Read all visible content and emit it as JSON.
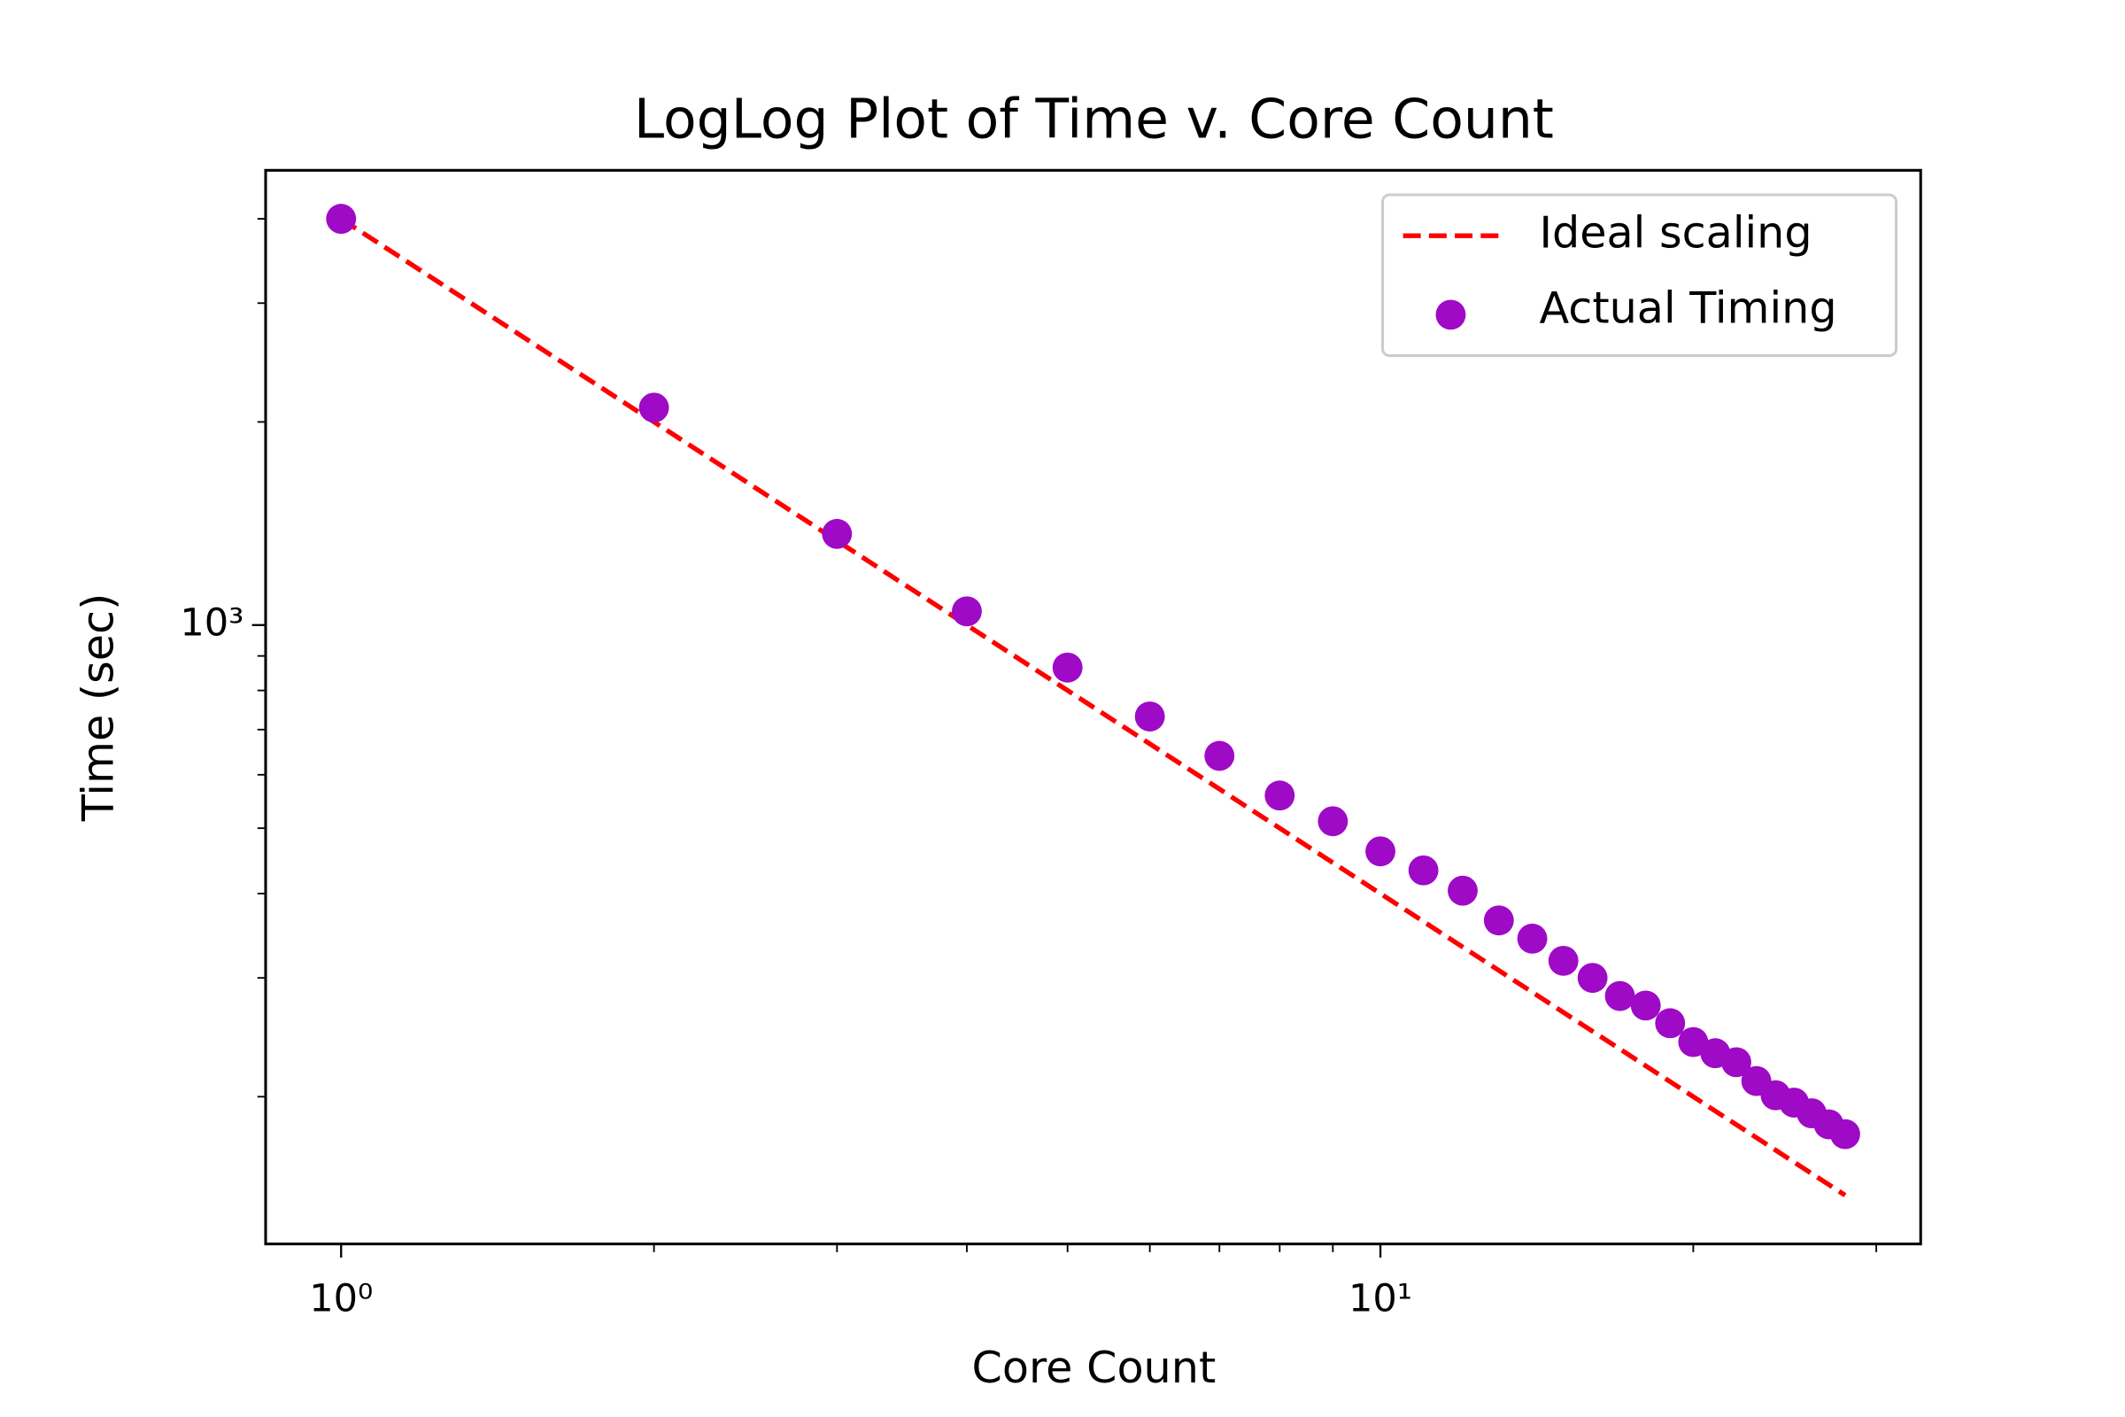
{
  "chart_data": {
    "type": "scatter",
    "title": "LogLog Plot of Time v. Core Count",
    "xlabel": "Core Count",
    "ylabel": "Time (sec)",
    "xscale": "log",
    "yscale": "log",
    "xlim": [
      0.846,
      33.1
    ],
    "ylim": [
      121,
      4720
    ],
    "xticks": [
      {
        "value": 1,
        "label": "10⁰"
      },
      {
        "value": 10,
        "label": "10¹"
      }
    ],
    "x_minor_ticks": [
      2,
      3,
      4,
      5,
      6,
      7,
      8,
      9,
      20,
      30
    ],
    "yticks": [
      {
        "value": 1000,
        "label": "10³"
      }
    ],
    "y_minor_ticks": [
      200,
      300,
      400,
      500,
      600,
      700,
      800,
      900,
      2000,
      3000,
      4000
    ],
    "legend": "upper right",
    "series": [
      {
        "name": "Ideal scaling",
        "type": "line",
        "style": "dashed",
        "color": "#ff0000",
        "x": [
          1,
          28
        ],
        "values": [
          4000,
          142.86
        ]
      },
      {
        "name": "Actual Timing",
        "type": "scatter",
        "color": "#9e0ac6",
        "x": [
          1,
          2,
          3,
          4,
          5,
          6,
          7,
          8,
          9,
          10,
          11,
          12,
          13,
          14,
          15,
          16,
          17,
          18,
          19,
          20,
          21,
          22,
          23,
          24,
          25,
          26,
          27,
          28
        ],
        "values": [
          4000,
          2100,
          1365,
          1048,
          865,
          732,
          640,
          559,
          512,
          462,
          433,
          404,
          365,
          343,
          318,
          300,
          282,
          273,
          257,
          241,
          232,
          225,
          211,
          201,
          196,
          189,
          182,
          176
        ]
      }
    ]
  }
}
